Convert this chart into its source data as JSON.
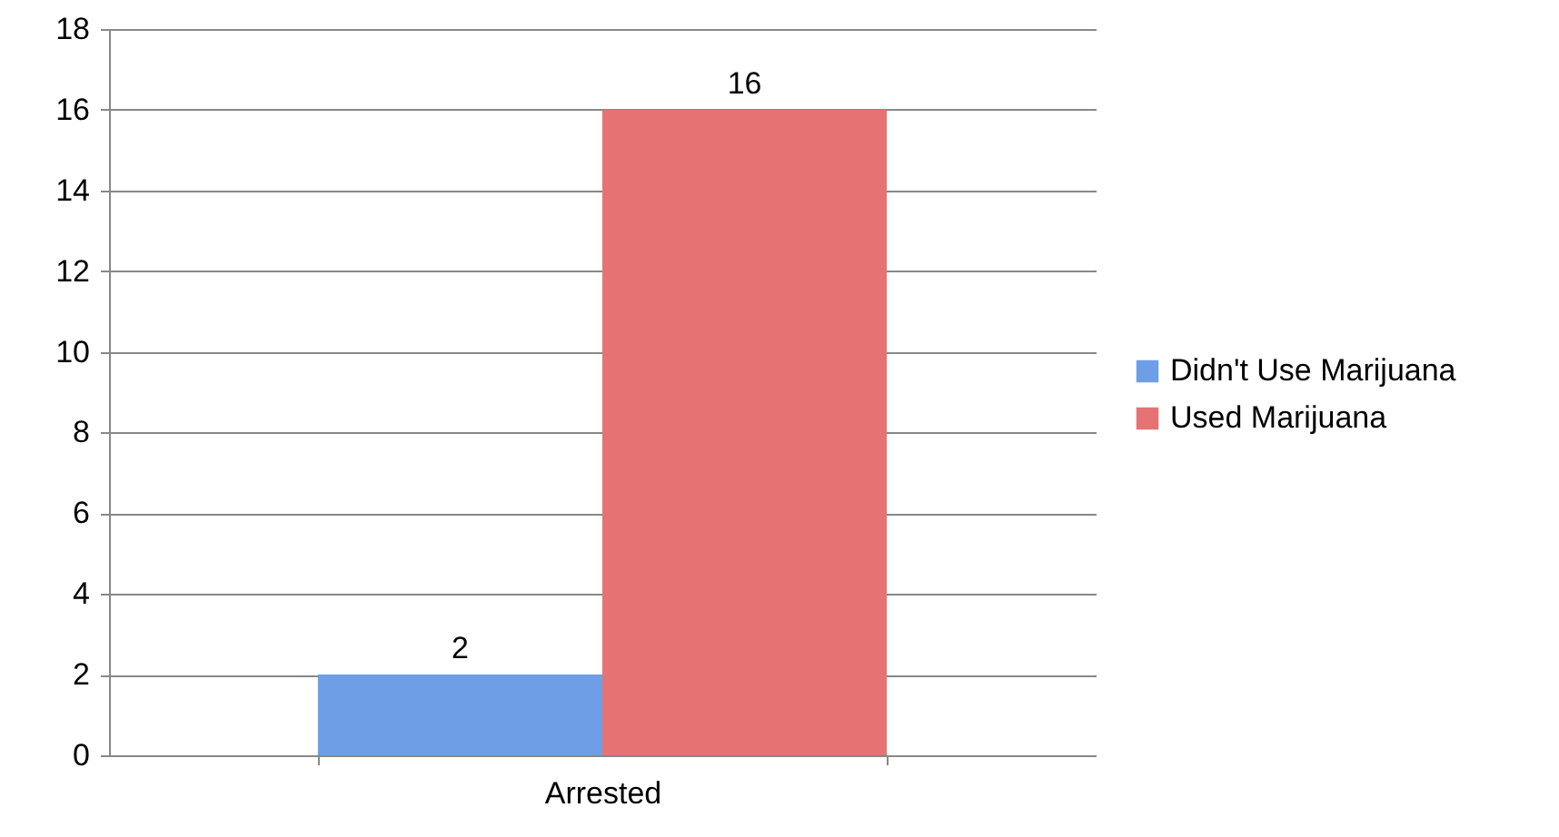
{
  "chart_data": {
    "type": "bar",
    "categories": [
      "Arrested"
    ],
    "series": [
      {
        "name": "Didn't Use Marijuana",
        "color": "#6e9fe6",
        "values": [
          2
        ]
      },
      {
        "name": "Used Marijuana",
        "color": "#e57373",
        "values": [
          16
        ]
      }
    ],
    "ylim": [
      0,
      18
    ],
    "yticks": [
      0,
      2,
      4,
      6,
      8,
      10,
      12,
      14,
      16,
      18
    ],
    "grid": true,
    "legend": "right",
    "data_labels": true
  }
}
